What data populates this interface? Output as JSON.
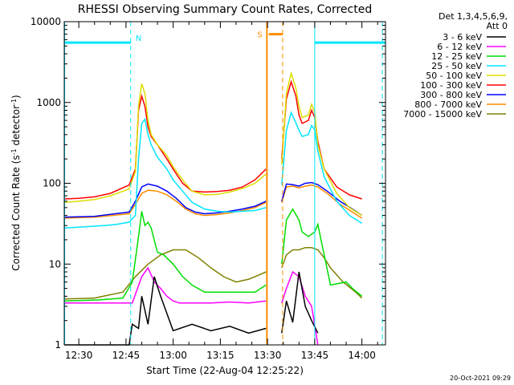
{
  "chart_data": {
    "type": "line",
    "title": "RHESSI Observing Summary Count Rates, Corrected",
    "xlabel": "Start Time (22-Aug-04 12:25:22)",
    "ylabel_main": "Corrected Count Rate (s",
    "ylabel_sup1": "-1",
    "ylabel_mid": " detector",
    "ylabel_sup2": "-1",
    "ylabel_end": ")",
    "x_ticks": [
      "12:30",
      "12:45",
      "13:00",
      "13:15",
      "13:30",
      "13:45",
      "14:00"
    ],
    "x_tick_minutes": [
      30,
      45,
      60,
      75,
      90,
      105,
      120
    ],
    "xlim_minutes": [
      25.37,
      127.5
    ],
    "y_scale": "log",
    "ylim": [
      1,
      10000
    ],
    "y_ticks": [
      "1",
      "10",
      "100",
      "1000",
      "10000"
    ],
    "y_tick_values": [
      1,
      10,
      100,
      1000,
      10000
    ],
    "legend": {
      "header1": "Det 1,3,4,5,6,9,",
      "header2": "Att 0",
      "placement": "right"
    },
    "series": [
      {
        "name": "3 - 6 keV",
        "color": "#000000",
        "x": [
          25.5,
          36,
          46,
          47,
          49,
          50,
          52,
          54,
          56,
          60,
          66,
          72,
          78,
          84,
          89.5,
          94.5,
          96,
          98,
          100,
          102,
          104,
          106
        ],
        "y": [
          1,
          1,
          1,
          1.8,
          1.6,
          4,
          1.8,
          7,
          4,
          1.5,
          1.8,
          1.5,
          1.7,
          1.4,
          1.6,
          1.4,
          3.5,
          1.9,
          8,
          3,
          2,
          1.4
        ]
      },
      {
        "name": "6 - 12 keV",
        "color": "#ff00ff",
        "x": [
          25.5,
          36,
          46,
          47,
          50,
          52,
          54,
          56,
          58,
          60,
          62,
          66,
          72,
          78,
          84,
          89.5,
          94.5,
          96,
          98,
          100,
          102,
          104,
          106
        ],
        "y": [
          3.3,
          3.3,
          3.3,
          3.3,
          7,
          9,
          6,
          5,
          4,
          3.5,
          3.3,
          3.3,
          3.3,
          3.4,
          3.3,
          3.5,
          3.3,
          5,
          8,
          7,
          4,
          3,
          1
        ]
      },
      {
        "name": "12 - 25 keV",
        "color": "#00dd00",
        "x": [
          25.5,
          36,
          44,
          47,
          49,
          50,
          51,
          52,
          53,
          55,
          57,
          60,
          63,
          66,
          70,
          74,
          78,
          82,
          86,
          89.5,
          94.5,
          96,
          98,
          100,
          101,
          103,
          105,
          106,
          107,
          110,
          115,
          117,
          120
        ],
        "y": [
          3.5,
          3.6,
          3.8,
          6,
          22,
          45,
          30,
          33,
          28,
          14,
          13,
          10,
          7,
          5.5,
          4.5,
          4.5,
          4.5,
          4.5,
          4.5,
          5.5,
          10,
          35,
          48,
          35,
          25,
          22,
          25,
          31,
          20,
          5.5,
          6,
          5,
          4
        ]
      },
      {
        "name": "25 - 50 keV",
        "color": "#00e5ff",
        "x": [
          25.5,
          32,
          38,
          42,
          46,
          48,
          49,
          50,
          51,
          52,
          53,
          55,
          58,
          60,
          63,
          66,
          70,
          74,
          78,
          82,
          86,
          89.5,
          94.5,
          96,
          97.5,
          99,
          100,
          101,
          103,
          104,
          105,
          106,
          108,
          112,
          116,
          120
        ],
        "y": [
          28,
          29,
          30,
          31,
          33,
          40,
          200,
          550,
          620,
          400,
          300,
          210,
          150,
          110,
          80,
          58,
          48,
          45,
          44,
          45,
          46,
          50,
          95,
          450,
          750,
          560,
          450,
          380,
          400,
          520,
          460,
          250,
          120,
          60,
          40,
          32
        ]
      },
      {
        "name": "50 - 100 keV",
        "color": "#dddd00",
        "x": [
          25.5,
          30,
          35,
          40,
          46,
          48,
          49,
          50,
          51,
          52,
          53,
          55,
          58,
          60,
          63,
          66,
          70,
          74,
          78,
          82,
          86,
          89.5,
          94.5,
          96,
          97.5,
          99,
          100,
          101,
          103,
          104,
          105,
          106,
          108,
          112,
          116,
          120
        ],
        "y": [
          58,
          60,
          63,
          70,
          85,
          140,
          900,
          1700,
          1300,
          600,
          400,
          300,
          220,
          160,
          110,
          80,
          72,
          73,
          78,
          86,
          100,
          130,
          170,
          1300,
          2300,
          1500,
          900,
          650,
          700,
          950,
          750,
          300,
          150,
          75,
          50,
          40
        ]
      },
      {
        "name": "100 - 300 keV",
        "color": "#ff0000",
        "x": [
          25.5,
          30,
          35,
          40,
          46,
          48,
          49,
          50,
          51,
          52,
          53,
          55,
          58,
          60,
          63,
          66,
          70,
          74,
          78,
          82,
          86,
          89.5,
          94.5,
          96,
          97.5,
          99,
          100,
          101,
          103,
          104,
          105,
          106,
          108,
          112,
          116,
          120
        ],
        "y": [
          64,
          65,
          68,
          75,
          95,
          150,
          800,
          1200,
          900,
          500,
          380,
          300,
          200,
          150,
          100,
          80,
          78,
          79,
          82,
          90,
          110,
          150,
          200,
          1100,
          1800,
          1200,
          700,
          550,
          600,
          800,
          650,
          330,
          150,
          90,
          72,
          64
        ]
      },
      {
        "name": "300 - 800 keV",
        "color": "#0000ff",
        "x": [
          25.5,
          35,
          46,
          48,
          50,
          52,
          55,
          58,
          61,
          64,
          67,
          70,
          74,
          78,
          82,
          86,
          89.5,
          94.5,
          96,
          98,
          100,
          102,
          104,
          106,
          109,
          113,
          117,
          120
        ],
        "y": [
          38,
          39,
          44,
          60,
          90,
          98,
          92,
          80,
          65,
          50,
          44,
          42,
          43,
          45,
          48,
          52,
          60,
          60,
          98,
          96,
          92,
          100,
          102,
          96,
          80,
          60,
          48,
          40
        ]
      },
      {
        "name": "800 - 7000 keV",
        "color": "#ff8c00",
        "x": [
          25.5,
          35,
          46,
          48,
          50,
          52,
          55,
          58,
          61,
          64,
          67,
          70,
          74,
          78,
          82,
          86,
          89.5,
          94.5,
          96,
          98,
          100,
          102,
          104,
          106,
          109,
          113,
          117,
          120
        ],
        "y": [
          37,
          38,
          42,
          55,
          75,
          82,
          80,
          72,
          60,
          48,
          42,
          40,
          41,
          43,
          46,
          50,
          58,
          58,
          90,
          92,
          88,
          92,
          95,
          90,
          75,
          55,
          44,
          37
        ]
      },
      {
        "name": "7000 - 15000 keV",
        "color": "#808000",
        "x": [
          25.5,
          35,
          44,
          48,
          52,
          56,
          60,
          64,
          68,
          72,
          76,
          80,
          84,
          86,
          89.5,
          94.5,
          96,
          98,
          100,
          102,
          104,
          106,
          108,
          110,
          114,
          118,
          120
        ],
        "y": [
          3.7,
          3.8,
          4.5,
          7,
          10,
          13,
          15,
          15,
          12,
          9,
          7,
          6,
          6.5,
          7,
          8,
          9,
          13,
          15,
          15,
          16,
          16,
          15,
          12,
          9,
          6,
          4.5,
          3.8
        ]
      }
    ],
    "markers": [
      {
        "label": "N",
        "color": "#00e5ff",
        "x_minutes": 46.5,
        "bar_start": 25.5,
        "bar_end": 46.5,
        "bar_level": 5500
      }
    ],
    "attenuator_events": [
      {
        "label": "S",
        "color": "#ff8c00",
        "x_minutes": 90.4,
        "x_end": 94.8,
        "bar_level": 7000
      }
    ],
    "cyan_segments": [
      {
        "x_start": 105.0,
        "x_end": 127.5,
        "level": 5500
      }
    ],
    "cyan_solid_lines": [
      25.5,
      105.0
    ],
    "cyan_dashed_lines": [
      46.5,
      126.5
    ],
    "orange_solid_lines": [
      89.8
    ],
    "orange_dashed_lines": [
      94.8
    ],
    "data_gap_minutes": [
      89.8,
      94.4
    ],
    "grid": "off",
    "footer_stamp": "20-Oct-2021 09:29"
  }
}
